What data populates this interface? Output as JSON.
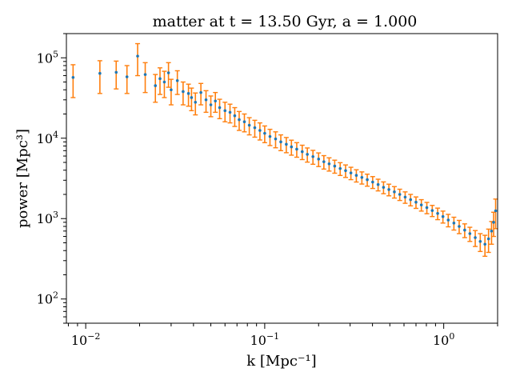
{
  "chart_data": {
    "type": "scatter",
    "title": "matter at t = 13.50 Gyr, a = 1.000",
    "xlabel": "k [Mpc⁻¹]",
    "ylabel": "power [Mpc³]",
    "x_scale": "log",
    "y_scale": "log",
    "xlim": [
      0.0078,
      2.0
    ],
    "ylim": [
      50,
      200000
    ],
    "x_ticks": [
      {
        "value": 0.01,
        "label": "10",
        "exp": "−2"
      },
      {
        "value": 0.1,
        "label": "10",
        "exp": "−1"
      },
      {
        "value": 1,
        "label": "10",
        "exp": "0"
      }
    ],
    "y_ticks": [
      {
        "value": 100,
        "label": "10",
        "exp": "2"
      },
      {
        "value": 1000,
        "label": "10",
        "exp": "3"
      },
      {
        "value": 10000,
        "label": "10",
        "exp": "4"
      },
      {
        "value": 100000,
        "label": "10",
        "exp": "5"
      }
    ],
    "grid": false,
    "legend": "none",
    "colors": {
      "points": "#1f77b4",
      "errorbars": "#ff7f0e"
    },
    "series": [
      {
        "x": [
          0.0085,
          0.012,
          0.0148,
          0.017,
          0.0195,
          0.0215,
          0.0245,
          0.026,
          0.0275,
          0.029,
          0.03,
          0.0325,
          0.035,
          0.0375,
          0.039,
          0.041,
          0.044,
          0.047,
          0.05,
          0.053,
          0.056,
          0.06,
          0.064,
          0.068,
          0.072,
          0.077,
          0.082,
          0.088,
          0.094,
          0.1,
          0.107,
          0.115,
          0.123,
          0.132,
          0.141,
          0.151,
          0.162,
          0.173,
          0.186,
          0.2,
          0.214,
          0.229,
          0.246,
          0.264,
          0.283,
          0.303,
          0.325,
          0.349,
          0.374,
          0.401,
          0.43,
          0.461,
          0.494,
          0.53,
          0.568,
          0.609,
          0.653,
          0.7,
          0.75,
          0.805,
          0.863,
          0.925,
          0.99,
          1.06,
          1.14,
          1.22,
          1.31,
          1.4,
          1.5,
          1.6,
          1.7,
          1.78,
          1.85,
          1.9,
          1.95
        ],
        "y": [
          57000,
          64000,
          66000,
          58000,
          105000,
          62000,
          45000,
          55000,
          50000,
          65000,
          40000,
          52000,
          38000,
          36000,
          32000,
          28000,
          37000,
          30000,
          26000,
          29000,
          24000,
          22000,
          21000,
          19000,
          17000,
          16000,
          14500,
          13500,
          12500,
          11500,
          10500,
          9800,
          9000,
          8400,
          7800,
          7300,
          6800,
          6300,
          5900,
          5500,
          5100,
          4800,
          4500,
          4200,
          3950,
          3700,
          3450,
          3250,
          3050,
          2850,
          2650,
          2450,
          2300,
          2150,
          2000,
          1850,
          1720,
          1600,
          1480,
          1370,
          1260,
          1160,
          1060,
          960,
          880,
          800,
          720,
          650,
          580,
          520,
          480,
          560,
          700,
          900,
          1250
        ],
        "yerr": [
          25000,
          28000,
          25000,
          22000,
          45000,
          25000,
          17000,
          20000,
          18000,
          22000,
          14000,
          17000,
          12000,
          11000,
          10000,
          8500,
          11000,
          9000,
          7500,
          8000,
          6500,
          6000,
          5500,
          5000,
          4500,
          4000,
          3500,
          3200,
          3000,
          2700,
          2400,
          2200,
          2000,
          1800,
          1650,
          1500,
          1380,
          1260,
          1160,
          1060,
          970,
          900,
          830,
          760,
          700,
          650,
          600,
          560,
          520,
          480,
          440,
          410,
          380,
          350,
          320,
          300,
          280,
          260,
          240,
          220,
          200,
          190,
          180,
          170,
          160,
          150,
          140,
          130,
          130,
          130,
          140,
          180,
          220,
          300,
          500
        ]
      }
    ]
  }
}
